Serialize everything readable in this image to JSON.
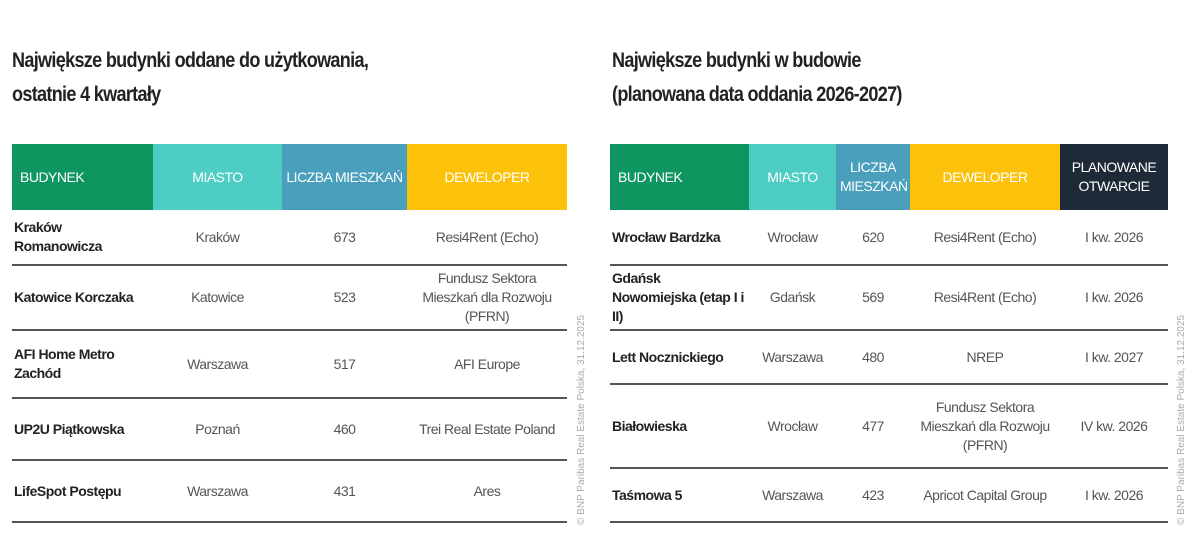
{
  "left": {
    "title_line1": "Największe budynki oddane do użytkowania,",
    "title_line2": "ostatnie 4 kwartały",
    "headers": [
      "BUDYNEK",
      "MIASTO",
      "LICZBA MIESZKAŃ",
      "DEWELOPER"
    ],
    "rows": [
      [
        "Kraków Romanowicza",
        "Kraków",
        "673",
        "Resi4Rent (Echo)"
      ],
      [
        "Katowice Korczaka",
        "Katowice",
        "523",
        "Fundusz Sektora Mieszkań dla Rozwoju (PFRN)"
      ],
      [
        "AFI Home Metro Zachód",
        "Warszawa",
        "517",
        "AFI Europe"
      ],
      [
        "UP2U Piątkowska",
        "Poznań",
        "460",
        "Trei Real Estate Poland"
      ],
      [
        "LifeSpot Postępu",
        "Warszawa",
        "431",
        "Ares"
      ]
    ]
  },
  "right": {
    "title_line1": "Największe budynki w budowie",
    "title_line2": "(planowana data oddania 2026-2027)",
    "headers": [
      "BUDYNEK",
      "MIASTO",
      "LICZBA MIESZKAŃ",
      "DEWELOPER",
      "PLANOWANE OTWARCIE"
    ],
    "rows": [
      [
        "Wrocław Bardzka",
        "Wrocław",
        "620",
        "Resi4Rent (Echo)",
        "I kw. 2026"
      ],
      [
        "Gdańsk Nowomiejska (etap I i II)",
        "Gdańsk",
        "569",
        "Resi4Rent (Echo)",
        "I kw. 2026"
      ],
      [
        "Lett Nocznickiego",
        "Warszawa",
        "480",
        "NREP",
        "I kw. 2027"
      ],
      [
        "Białowieska",
        "Wrocław",
        "477",
        "Fundusz Sektora Mieszkań dla Rozwoju (PFRN)",
        "IV kw. 2026"
      ],
      [
        "Taśmowa 5",
        "Warszawa",
        "423",
        "Apricot Capital Group",
        "I kw. 2026"
      ]
    ]
  },
  "watermark": "© BNP Paribas Real Estate Polska, 31.12.2025",
  "colors": {
    "green": "#0e9560",
    "teal": "#4ecdc4",
    "blue": "#4a9fbc",
    "yellow": "#fcc10b",
    "dark": "#1e2a38"
  }
}
